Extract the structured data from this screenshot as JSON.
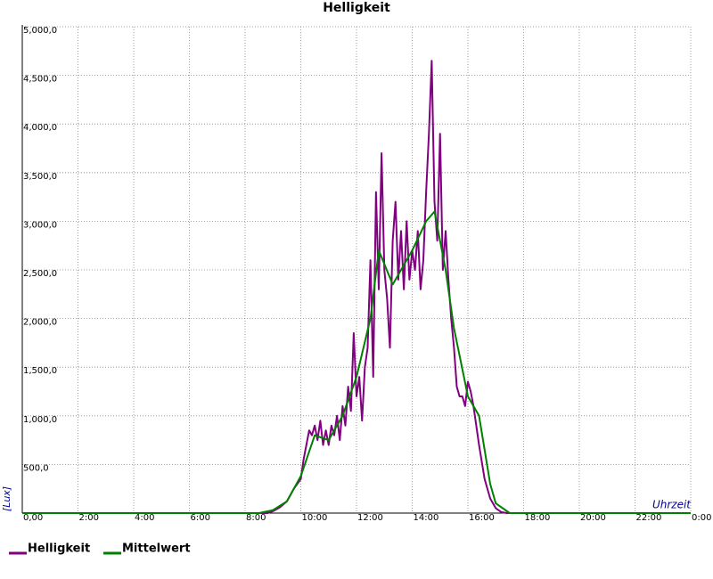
{
  "chart_data": {
    "type": "line",
    "title": "Helligkeit",
    "y_label": "[Lux]",
    "x_label": "Uhrzeit",
    "xlim": [
      0,
      24
    ],
    "ylim": [
      0,
      5000
    ],
    "xticks": [
      {
        "value": 0,
        "label": "0,00"
      },
      {
        "value": 2,
        "label": "2:00"
      },
      {
        "value": 4,
        "label": "4:00"
      },
      {
        "value": 6,
        "label": "6:00"
      },
      {
        "value": 8,
        "label": "8:00"
      },
      {
        "value": 10,
        "label": "10:00"
      },
      {
        "value": 12,
        "label": "12:00"
      },
      {
        "value": 14,
        "label": "14:00"
      },
      {
        "value": 16,
        "label": "16:00"
      },
      {
        "value": 18,
        "label": "18:00"
      },
      {
        "value": 20,
        "label": "20:00"
      },
      {
        "value": 22,
        "label": "22:00"
      },
      {
        "value": 24,
        "label": "0:00"
      }
    ],
    "yticks": [
      {
        "value": 500,
        "label": "500,0"
      },
      {
        "value": 1000,
        "label": "1,000,0"
      },
      {
        "value": 1500,
        "label": "1,500,0"
      },
      {
        "value": 2000,
        "label": "2,000,0"
      },
      {
        "value": 2500,
        "label": "2,500,0"
      },
      {
        "value": 3000,
        "label": "3,000,0"
      },
      {
        "value": 3500,
        "label": "3,500,0"
      },
      {
        "value": 4000,
        "label": "4,000,0"
      },
      {
        "value": 4500,
        "label": "4,500,0"
      },
      {
        "value": 5000,
        "label": "5,000,0"
      }
    ],
    "grid": true,
    "series": [
      {
        "name": "Helligkeit",
        "color": "#800080",
        "x": [
          0,
          8.8,
          9.0,
          9.25,
          9.5,
          9.75,
          10.0,
          10.1,
          10.2,
          10.3,
          10.4,
          10.5,
          10.6,
          10.7,
          10.8,
          10.9,
          11.0,
          11.1,
          11.2,
          11.3,
          11.4,
          11.5,
          11.6,
          11.7,
          11.8,
          11.9,
          12.0,
          12.1,
          12.2,
          12.3,
          12.4,
          12.5,
          12.6,
          12.7,
          12.8,
          12.9,
          13.0,
          13.1,
          13.2,
          13.3,
          13.4,
          13.5,
          13.6,
          13.7,
          13.8,
          13.9,
          14.0,
          14.1,
          14.2,
          14.3,
          14.4,
          14.5,
          14.6,
          14.7,
          14.8,
          14.9,
          15.0,
          15.1,
          15.2,
          15.3,
          15.4,
          15.5,
          15.6,
          15.7,
          15.8,
          15.9,
          16.0,
          16.1,
          16.2,
          16.4,
          16.6,
          16.8,
          17.0,
          17.2,
          17.4,
          24
        ],
        "values": [
          0,
          0,
          20,
          60,
          120,
          250,
          350,
          550,
          700,
          850,
          800,
          900,
          750,
          950,
          700,
          850,
          700,
          900,
          800,
          1000,
          750,
          1100,
          900,
          1300,
          1050,
          1850,
          1200,
          1400,
          950,
          1500,
          1700,
          2600,
          1400,
          3300,
          2300,
          3700,
          2500,
          2200,
          1700,
          2800,
          3200,
          2400,
          2900,
          2300,
          3000,
          2400,
          2700,
          2500,
          2900,
          2300,
          2600,
          3300,
          3900,
          4650,
          3200,
          2800,
          3900,
          2500,
          2900,
          2400,
          2000,
          1700,
          1300,
          1200,
          1200,
          1100,
          1350,
          1250,
          1100,
          700,
          350,
          150,
          50,
          10,
          0,
          0
        ]
      },
      {
        "name": "Mittelwert",
        "color": "#008000",
        "x": [
          0,
          8.5,
          9.0,
          9.5,
          10.0,
          10.5,
          11.0,
          11.5,
          12.0,
          12.5,
          12.8,
          13.3,
          13.6,
          14.0,
          14.5,
          14.8,
          15.2,
          15.5,
          16.0,
          16.4,
          16.8,
          17.0,
          17.5,
          24
        ],
        "values": [
          0,
          0,
          30,
          120,
          380,
          800,
          750,
          1000,
          1400,
          2000,
          2700,
          2350,
          2500,
          2700,
          3000,
          3100,
          2500,
          1900,
          1200,
          1000,
          300,
          100,
          0,
          0
        ]
      }
    ]
  }
}
